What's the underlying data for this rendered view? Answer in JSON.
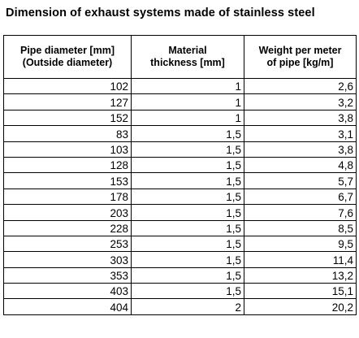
{
  "title": "Dimension of exhaust systems made of stainless steel",
  "table": {
    "headers": [
      [
        "Pipe diameter [mm]",
        "(Outside diameter)"
      ],
      [
        "Material",
        "thickness [mm]"
      ],
      [
        "Weight per meter",
        "of pipe [kg/m]"
      ]
    ],
    "rows": [
      [
        "102",
        "1",
        "2,6"
      ],
      [
        "127",
        "1",
        "3,2"
      ],
      [
        "152",
        "1",
        "3,8"
      ],
      [
        "83",
        "1,5",
        "3,1"
      ],
      [
        "103",
        "1,5",
        "3,8"
      ],
      [
        "128",
        "1,5",
        "4,8"
      ],
      [
        "153",
        "1,5",
        "5,7"
      ],
      [
        "178",
        "1,5",
        "6,7"
      ],
      [
        "203",
        "1,5",
        "7,6"
      ],
      [
        "228",
        "1,5",
        "8,5"
      ],
      [
        "253",
        "1,5",
        "9,5"
      ],
      [
        "303",
        "1,5",
        "11,4"
      ],
      [
        "353",
        "1,5",
        "13,2"
      ],
      [
        "403",
        "1,5",
        "15,1"
      ],
      [
        "404",
        "2",
        "20,2"
      ]
    ]
  }
}
